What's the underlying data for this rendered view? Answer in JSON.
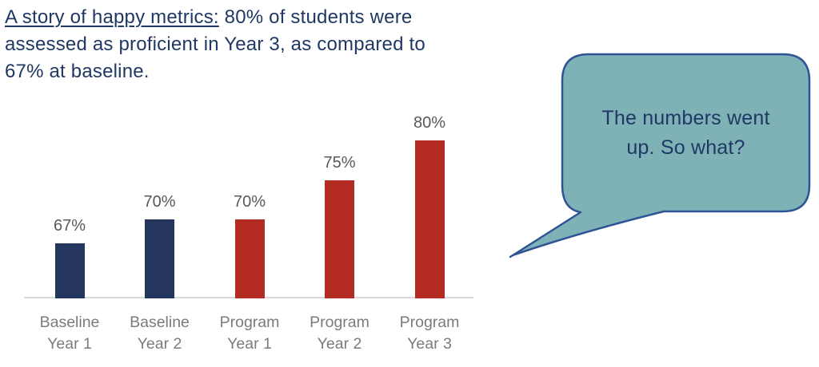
{
  "header": {
    "lead": "A story of happy metrics:",
    "rest": " 80% of students were assessed as proficient in Year 3, as compared to 67% at baseline."
  },
  "chart_data": {
    "type": "bar",
    "title": "A story of happy metrics: 80% of students were assessed as proficient in Year 3, as compared to 67% at baseline.",
    "categories": [
      "Baseline\nYear 1",
      "Baseline\nYear 2",
      "Program\nYear 1",
      "Program\nYear 2",
      "Program\nYear 3"
    ],
    "values": [
      67,
      70,
      70,
      75,
      80
    ],
    "data_labels": [
      "67%",
      "70%",
      "70%",
      "75%",
      "80%"
    ],
    "bar_colors": [
      "#24365E",
      "#24365E",
      "#B32B22",
      "#B32B22",
      "#B32B22"
    ],
    "xlabel": "",
    "ylabel": "",
    "ylim": [
      60,
      82
    ],
    "grid": false,
    "legend": false,
    "annotation": "The numbers went up. So what?"
  },
  "speech_bubble": {
    "text": "The numbers went up. So what?"
  },
  "colors": {
    "title_text": "#1F3864",
    "navy_bar": "#24365E",
    "red_bar": "#B32B22",
    "data_label": "#595959",
    "axis_label": "#7B7B7B",
    "axis_line": "#D9D9D9",
    "bubble_fill": "#7FB2B6",
    "bubble_border": "#2F5496",
    "bubble_text": "#1F3864"
  }
}
